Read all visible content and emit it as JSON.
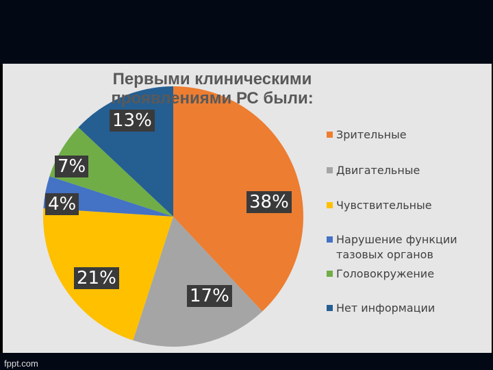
{
  "title": "Первыми клиническими проявлениями РС были:",
  "footer": "fppt.com",
  "chart_data": {
    "type": "pie",
    "title": "Первыми клиническими проявлениями РС были:",
    "categories": [
      "Зрительные",
      "Двигательные",
      "Чувствительные",
      "Нарушение функции тазовых органов",
      "Головокружение",
      "Нет информации"
    ],
    "values": [
      38,
      17,
      21,
      4,
      7,
      13
    ],
    "labels": [
      "38%",
      "17%",
      "21%",
      "4%",
      "7%",
      "13%"
    ],
    "colors": [
      "#ed7d31",
      "#a5a5a5",
      "#ffc000",
      "#4472c4",
      "#70ad47",
      "#255e91"
    ],
    "legend_position": "right"
  }
}
